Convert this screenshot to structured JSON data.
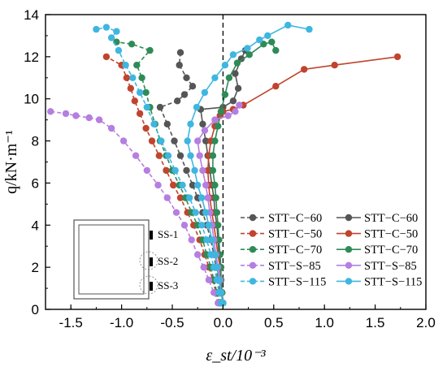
{
  "chart_data": {
    "type": "line",
    "xlabel": "ε_st/10⁻³",
    "ylabel": "q/kN·m⁻¹",
    "xlim": [
      -1.75,
      2.0
    ],
    "ylim": [
      0,
      14
    ],
    "xticks": [
      "-1.5",
      "-1.0",
      "-0.5",
      "0.0",
      "0.5",
      "1.0",
      "1.5",
      "2.0"
    ],
    "yticks": [
      "0",
      "2",
      "4",
      "6",
      "8",
      "10",
      "12",
      "14"
    ],
    "grid": false,
    "legend_position": "lower-right",
    "zero_reference_line": {
      "x": 0.0,
      "style": "dashed"
    },
    "series": [
      {
        "name": "STT−C−60",
        "color": "#555555",
        "dashed": true,
        "points": [
          [
            -0.02,
            0.3
          ],
          [
            -0.03,
            0.8
          ],
          [
            -0.05,
            1.4
          ],
          [
            -0.07,
            2.0
          ],
          [
            -0.09,
            2.6
          ],
          [
            -0.12,
            3.3
          ],
          [
            -0.16,
            4.0
          ],
          [
            -0.2,
            4.6
          ],
          [
            -0.25,
            5.3
          ],
          [
            -0.3,
            5.9
          ],
          [
            -0.36,
            6.6
          ],
          [
            -0.42,
            7.3
          ],
          [
            -0.48,
            8.0
          ],
          [
            -0.55,
            8.8
          ],
          [
            -0.62,
            9.6
          ],
          [
            -0.45,
            9.9
          ],
          [
            -0.38,
            10.2
          ],
          [
            -0.3,
            10.6
          ],
          [
            -0.36,
            11.0
          ],
          [
            -0.43,
            11.6
          ],
          [
            -0.42,
            12.2
          ]
        ]
      },
      {
        "name": "STT−C−60",
        "color": "#555555",
        "dashed": false,
        "points": [
          [
            0.0,
            0.3
          ],
          [
            -0.01,
            0.8
          ],
          [
            -0.02,
            1.4
          ],
          [
            -0.03,
            2.0
          ],
          [
            -0.04,
            2.6
          ],
          [
            -0.05,
            3.3
          ],
          [
            -0.06,
            4.0
          ],
          [
            -0.08,
            4.6
          ],
          [
            -0.09,
            5.3
          ],
          [
            -0.11,
            5.9
          ],
          [
            -0.13,
            6.6
          ],
          [
            -0.15,
            7.3
          ],
          [
            -0.17,
            8.0
          ],
          [
            -0.2,
            8.8
          ],
          [
            -0.22,
            9.5
          ],
          [
            0.0,
            9.6
          ],
          [
            0.1,
            9.9
          ],
          [
            0.15,
            10.5
          ],
          [
            0.12,
            11.2
          ],
          [
            0.18,
            11.9
          ],
          [
            0.22,
            12.3
          ]
        ]
      },
      {
        "name": "STT−C−50",
        "color": "#c0442e",
        "dashed": true,
        "points": [
          [
            -0.04,
            0.3
          ],
          [
            -0.07,
            0.8
          ],
          [
            -0.1,
            1.4
          ],
          [
            -0.14,
            2.0
          ],
          [
            -0.18,
            2.6
          ],
          [
            -0.23,
            3.3
          ],
          [
            -0.29,
            4.0
          ],
          [
            -0.35,
            4.6
          ],
          [
            -0.42,
            5.3
          ],
          [
            -0.49,
            5.9
          ],
          [
            -0.56,
            6.6
          ],
          [
            -0.63,
            7.3
          ],
          [
            -0.7,
            8.0
          ],
          [
            -0.76,
            8.6
          ],
          [
            -0.82,
            9.3
          ],
          [
            -0.87,
            9.9
          ],
          [
            -0.91,
            10.5
          ],
          [
            -0.95,
            11.0
          ],
          [
            -1.0,
            11.6
          ],
          [
            -1.15,
            12.0
          ]
        ]
      },
      {
        "name": "STT−C−50",
        "color": "#c0442e",
        "dashed": false,
        "points": [
          [
            0.0,
            0.3
          ],
          [
            -0.01,
            0.8
          ],
          [
            -0.02,
            1.4
          ],
          [
            -0.03,
            2.0
          ],
          [
            -0.05,
            2.6
          ],
          [
            -0.07,
            3.3
          ],
          [
            -0.09,
            4.0
          ],
          [
            -0.11,
            4.6
          ],
          [
            -0.13,
            5.3
          ],
          [
            -0.14,
            5.9
          ],
          [
            -0.15,
            6.6
          ],
          [
            -0.14,
            7.3
          ],
          [
            -0.12,
            8.0
          ],
          [
            -0.08,
            8.7
          ],
          [
            -0.03,
            9.2
          ],
          [
            0.0,
            9.4
          ],
          [
            0.1,
            9.5
          ],
          [
            0.2,
            9.7
          ],
          [
            0.52,
            10.6
          ],
          [
            0.8,
            11.4
          ],
          [
            1.1,
            11.6
          ],
          [
            1.72,
            12.0
          ]
        ]
      },
      {
        "name": "STT−C−70",
        "color": "#2e8b57",
        "dashed": true,
        "points": [
          [
            -0.03,
            0.3
          ],
          [
            -0.06,
            0.8
          ],
          [
            -0.09,
            1.4
          ],
          [
            -0.12,
            2.0
          ],
          [
            -0.16,
            2.6
          ],
          [
            -0.2,
            3.3
          ],
          [
            -0.25,
            4.0
          ],
          [
            -0.31,
            4.6
          ],
          [
            -0.37,
            5.3
          ],
          [
            -0.43,
            5.9
          ],
          [
            -0.5,
            6.6
          ],
          [
            -0.56,
            7.3
          ],
          [
            -0.62,
            8.0
          ],
          [
            -0.67,
            8.8
          ],
          [
            -0.72,
            9.6
          ],
          [
            -0.76,
            10.3
          ],
          [
            -0.8,
            11.0
          ],
          [
            -0.85,
            11.6
          ],
          [
            -0.72,
            12.3
          ],
          [
            -0.9,
            12.6
          ],
          [
            -1.05,
            12.7
          ]
        ]
      },
      {
        "name": "STT−C−70",
        "color": "#2e8b57",
        "dashed": false,
        "points": [
          [
            0.0,
            0.3
          ],
          [
            -0.01,
            0.8
          ],
          [
            -0.02,
            1.4
          ],
          [
            -0.02,
            2.0
          ],
          [
            -0.03,
            2.6
          ],
          [
            -0.04,
            3.3
          ],
          [
            -0.05,
            4.0
          ],
          [
            -0.06,
            4.6
          ],
          [
            -0.07,
            5.3
          ],
          [
            -0.08,
            5.9
          ],
          [
            -0.1,
            6.6
          ],
          [
            -0.1,
            7.3
          ],
          [
            -0.08,
            8.0
          ],
          [
            -0.05,
            8.7
          ],
          [
            -0.02,
            9.4
          ],
          [
            0.02,
            10.2
          ],
          [
            0.06,
            11.0
          ],
          [
            0.14,
            11.7
          ],
          [
            0.26,
            12.1
          ],
          [
            0.4,
            12.6
          ],
          [
            0.48,
            12.7
          ],
          [
            0.52,
            12.3
          ]
        ]
      },
      {
        "name": "STT−S−85",
        "color": "#b57ee0",
        "dashed": true,
        "points": [
          [
            -0.05,
            0.3
          ],
          [
            -0.09,
            0.8
          ],
          [
            -0.14,
            1.4
          ],
          [
            -0.19,
            2.0
          ],
          [
            -0.25,
            2.6
          ],
          [
            -0.31,
            3.3
          ],
          [
            -0.38,
            4.0
          ],
          [
            -0.46,
            4.6
          ],
          [
            -0.55,
            5.3
          ],
          [
            -0.64,
            5.9
          ],
          [
            -0.75,
            6.6
          ],
          [
            -0.86,
            7.3
          ],
          [
            -0.98,
            8.0
          ],
          [
            -1.1,
            8.6
          ],
          [
            -1.22,
            9.0
          ],
          [
            -1.32,
            9.1
          ],
          [
            -1.45,
            9.2
          ],
          [
            -1.55,
            9.3
          ],
          [
            -1.7,
            9.4
          ]
        ]
      },
      {
        "name": "STT−S−85",
        "color": "#b57ee0",
        "dashed": false,
        "points": [
          [
            0.0,
            0.3
          ],
          [
            -0.02,
            0.8
          ],
          [
            -0.03,
            1.4
          ],
          [
            -0.05,
            2.0
          ],
          [
            -0.07,
            2.6
          ],
          [
            -0.09,
            3.3
          ],
          [
            -0.11,
            4.0
          ],
          [
            -0.13,
            4.6
          ],
          [
            -0.15,
            5.3
          ],
          [
            -0.17,
            5.9
          ],
          [
            -0.2,
            6.6
          ],
          [
            -0.23,
            7.3
          ],
          [
            -0.25,
            8.0
          ],
          [
            -0.18,
            8.5
          ],
          [
            -0.08,
            9.0
          ],
          [
            0.05,
            9.2
          ],
          [
            0.12,
            9.4
          ],
          [
            0.16,
            9.7
          ]
        ]
      },
      {
        "name": "STT−S−115",
        "color": "#3fb6e0",
        "dashed": true,
        "points": [
          [
            -0.02,
            0.3
          ],
          [
            -0.04,
            0.8
          ],
          [
            -0.06,
            1.4
          ],
          [
            -0.09,
            2.0
          ],
          [
            -0.12,
            2.6
          ],
          [
            -0.16,
            3.3
          ],
          [
            -0.21,
            4.0
          ],
          [
            -0.27,
            4.6
          ],
          [
            -0.33,
            5.3
          ],
          [
            -0.4,
            5.9
          ],
          [
            -0.47,
            6.6
          ],
          [
            -0.54,
            7.3
          ],
          [
            -0.61,
            8.0
          ],
          [
            -0.68,
            8.8
          ],
          [
            -0.75,
            9.6
          ],
          [
            -0.82,
            10.3
          ],
          [
            -0.89,
            11.0
          ],
          [
            -0.96,
            11.6
          ],
          [
            -1.03,
            12.3
          ],
          [
            -1.1,
            12.9
          ],
          [
            -1.05,
            13.2
          ],
          [
            -1.15,
            13.4
          ],
          [
            -1.25,
            13.3
          ]
        ]
      },
      {
        "name": "STT−S−115",
        "color": "#3fb6e0",
        "dashed": false,
        "points": [
          [
            0.0,
            0.3
          ],
          [
            -0.02,
            0.8
          ],
          [
            -0.04,
            1.4
          ],
          [
            -0.06,
            2.0
          ],
          [
            -0.08,
            2.6
          ],
          [
            -0.11,
            3.3
          ],
          [
            -0.14,
            4.0
          ],
          [
            -0.17,
            4.6
          ],
          [
            -0.21,
            5.3
          ],
          [
            -0.25,
            5.9
          ],
          [
            -0.28,
            6.6
          ],
          [
            -0.32,
            7.3
          ],
          [
            -0.35,
            8.0
          ],
          [
            -0.32,
            8.8
          ],
          [
            -0.26,
            9.6
          ],
          [
            -0.18,
            10.3
          ],
          [
            -0.08,
            11.0
          ],
          [
            0.02,
            11.6
          ],
          [
            0.1,
            12.1
          ],
          [
            0.24,
            12.4
          ],
          [
            0.36,
            12.8
          ],
          [
            0.44,
            13.0
          ],
          [
            0.64,
            13.5
          ],
          [
            0.85,
            13.3
          ]
        ]
      }
    ],
    "inset": {
      "labels": [
        "SS-1",
        "SS-2",
        "SS-3"
      ]
    }
  }
}
